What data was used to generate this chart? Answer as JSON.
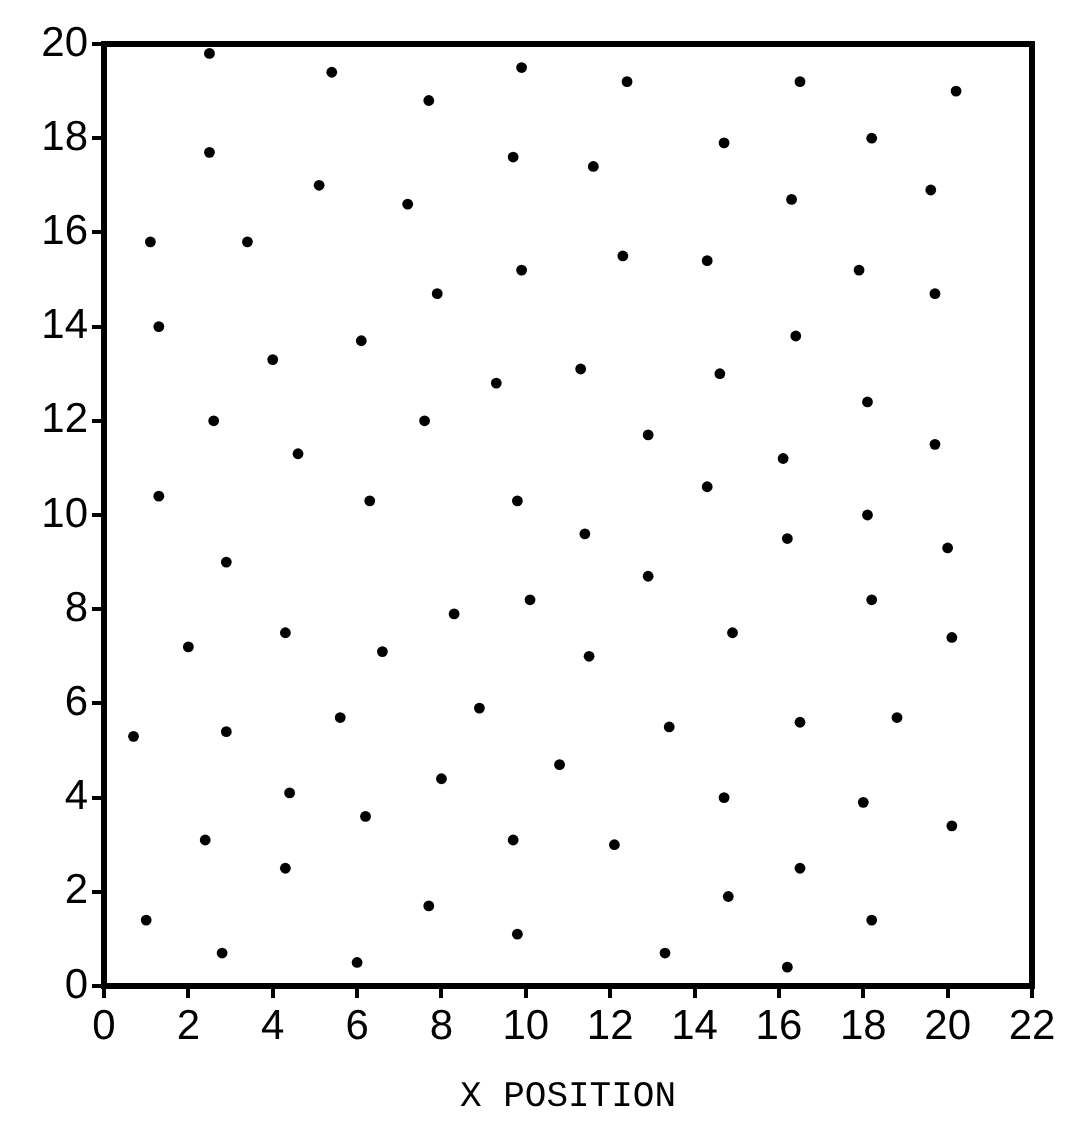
{
  "chart_data": {
    "type": "scatter",
    "xlabel": "X POSITION",
    "color": "#000000",
    "marker": "circle",
    "xlim": [
      0,
      22
    ],
    "ylim": [
      0,
      20
    ],
    "xticks": [
      0,
      2,
      4,
      6,
      8,
      10,
      12,
      14,
      16,
      18,
      20,
      22
    ],
    "yticks": [
      0,
      2,
      4,
      6,
      8,
      10,
      12,
      14,
      16,
      18,
      20
    ],
    "x": [
      2.5,
      5.4,
      2.5,
      5.1,
      1.1,
      3.4,
      1.3,
      4.0,
      6.1,
      2.6,
      4.6,
      1.3,
      6.3,
      9.9,
      12.4,
      7.7,
      14.7,
      9.7,
      11.6,
      7.2,
      12.3,
      9.9,
      14.3,
      7.9,
      11.3,
      9.3,
      14.6,
      7.6,
      12.9,
      14.3,
      9.8,
      16.5,
      20.2,
      18.2,
      16.3,
      19.6,
      17.9,
      19.7,
      16.4,
      18.1,
      16.1,
      19.7,
      18.1,
      2.9,
      2.0,
      4.3,
      6.6,
      5.6,
      0.7,
      2.9,
      4.4,
      6.2,
      2.4,
      4.3,
      1.0,
      2.8,
      6.0,
      11.4,
      12.9,
      8.3,
      10.1,
      14.9,
      11.5,
      8.9,
      13.4,
      8.0,
      10.8,
      14.7,
      9.7,
      12.1,
      14.8,
      7.7,
      9.8,
      13.3,
      16.2,
      20.0,
      18.2,
      20.1,
      16.5,
      18.8,
      18.0,
      20.1,
      16.5,
      18.2,
      16.2
    ],
    "values": [
      19.8,
      19.4,
      17.7,
      17.0,
      15.8,
      15.8,
      14.0,
      13.3,
      13.7,
      12.0,
      11.3,
      10.4,
      10.3,
      19.5,
      19.2,
      18.8,
      17.9,
      17.6,
      17.4,
      16.6,
      15.5,
      15.2,
      15.4,
      14.7,
      13.1,
      12.8,
      13.0,
      12.0,
      11.7,
      10.6,
      10.3,
      19.2,
      19.0,
      18.0,
      16.7,
      16.9,
      15.2,
      14.7,
      13.8,
      12.4,
      11.2,
      11.5,
      10.0,
      9.0,
      7.2,
      7.5,
      7.1,
      5.7,
      5.3,
      5.4,
      4.1,
      3.6,
      3.1,
      2.5,
      1.4,
      0.7,
      0.5,
      9.6,
      8.7,
      7.9,
      8.2,
      7.5,
      7.0,
      5.9,
      5.5,
      4.4,
      4.7,
      4.0,
      3.1,
      3.0,
      1.9,
      1.7,
      1.1,
      0.7,
      9.5,
      9.3,
      8.2,
      7.4,
      5.6,
      5.7,
      3.9,
      3.4,
      2.5,
      1.4,
      0.4
    ]
  }
}
